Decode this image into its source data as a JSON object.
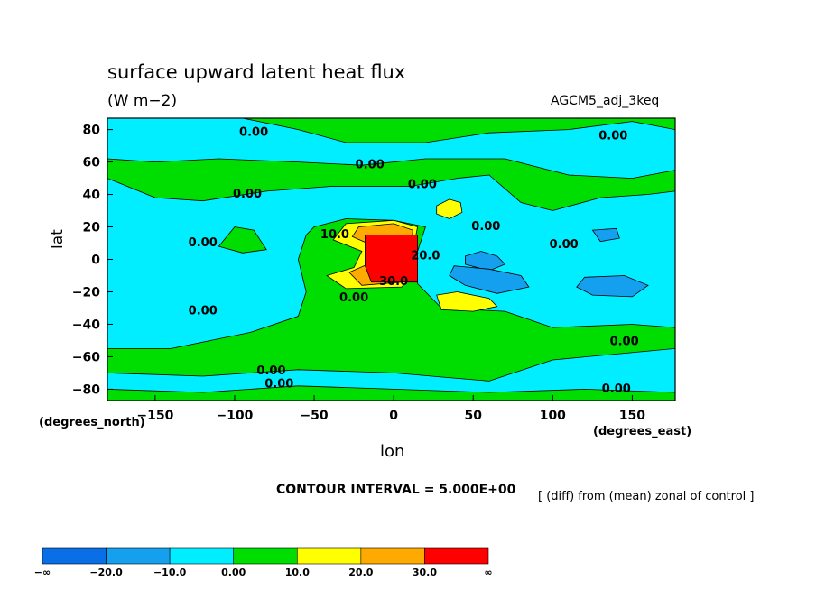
{
  "chart_data": {
    "type": "heatmap",
    "title": "surface upward latent heat flux",
    "subtitle": "(W m−2)",
    "run_label": "AGCM5_adj_3keq",
    "xlabel": "lon",
    "ylabel": "lat",
    "x_units_label": "(degrees_east)",
    "y_units_label": "(degrees_north)",
    "xlim": [
      -180,
      177
    ],
    "ylim": [
      -87,
      87
    ],
    "x_ticks": [
      -150,
      -100,
      -50,
      0,
      50,
      100,
      150
    ],
    "x_tick_labels": [
      "−150",
      "−100",
      "−50",
      "0",
      "50",
      "100",
      "150"
    ],
    "y_ticks": [
      80,
      60,
      40,
      20,
      0,
      -20,
      -40,
      -60,
      -80
    ],
    "y_tick_labels": [
      "80",
      "60",
      "40",
      "20",
      "0",
      "−20",
      "−40",
      "−60",
      "−80"
    ],
    "contour_interval_label": "CONTOUR INTERVAL = 5.000E+00",
    "operation_note": "[ (diff) from (mean) zonal of control ]",
    "colorbar": {
      "levels": [
        "−∞",
        "−20.0",
        "−10.0",
        "0.00",
        "10.0",
        "20.0",
        "30.0",
        "∞"
      ],
      "colors": [
        "#0a6ee6",
        "#14a0ee",
        "#00eeff",
        "#00dd00",
        "#ffff00",
        "#ffaa00",
        "#ff0000"
      ]
    },
    "background_color": "#00eeff",
    "regions": [
      {
        "value_class": "0 to 10",
        "color": "#00dd00",
        "polygon": [
          [
            -50,
            20
          ],
          [
            -30,
            25
          ],
          [
            0,
            24
          ],
          [
            20,
            20
          ],
          [
            15,
            5
          ],
          [
            15,
            -15
          ],
          [
            30,
            -30
          ],
          [
            70,
            -32
          ],
          [
            100,
            -42
          ],
          [
            150,
            -40
          ],
          [
            177,
            -42
          ],
          [
            177,
            -55
          ],
          [
            100,
            -62
          ],
          [
            60,
            -75
          ],
          [
            0,
            -70
          ],
          [
            -60,
            -68
          ],
          [
            -120,
            -72
          ],
          [
            -180,
            -70
          ],
          [
            -180,
            -55
          ],
          [
            -140,
            -55
          ],
          [
            -90,
            -45
          ],
          [
            -60,
            -35
          ],
          [
            -55,
            -20
          ],
          [
            -60,
            0
          ],
          [
            -55,
            15
          ]
        ]
      },
      {
        "value_class": "0 to 10",
        "color": "#00dd00",
        "polygon": [
          [
            -180,
            50
          ],
          [
            -150,
            38
          ],
          [
            -120,
            36
          ],
          [
            -80,
            42
          ],
          [
            -40,
            45
          ],
          [
            10,
            45
          ],
          [
            40,
            50
          ],
          [
            60,
            52
          ],
          [
            80,
            35
          ],
          [
            100,
            30
          ],
          [
            130,
            38
          ],
          [
            160,
            40
          ],
          [
            177,
            42
          ],
          [
            177,
            55
          ],
          [
            150,
            50
          ],
          [
            110,
            52
          ],
          [
            70,
            62
          ],
          [
            20,
            62
          ],
          [
            -20,
            58
          ],
          [
            -60,
            60
          ],
          [
            -110,
            62
          ],
          [
            -150,
            60
          ],
          [
            -180,
            62
          ]
        ]
      },
      {
        "value_class": "0 to 10",
        "color": "#00dd00",
        "polygon": [
          [
            -180,
            88
          ],
          [
            -100,
            88
          ],
          [
            -60,
            80
          ],
          [
            -30,
            72
          ],
          [
            20,
            72
          ],
          [
            60,
            78
          ],
          [
            110,
            80
          ],
          [
            150,
            85
          ],
          [
            177,
            80
          ],
          [
            177,
            88
          ]
        ]
      },
      {
        "value_class": "0 to 10",
        "color": "#00dd00",
        "polygon": [
          [
            -180,
            -80
          ],
          [
            -120,
            -82
          ],
          [
            -60,
            -78
          ],
          [
            0,
            -80
          ],
          [
            60,
            -82
          ],
          [
            120,
            -80
          ],
          [
            177,
            -82
          ],
          [
            177,
            -88
          ],
          [
            -180,
            -88
          ]
        ]
      },
      {
        "value_class": "0 to 10",
        "color": "#00dd00",
        "polygon": [
          [
            -110,
            8
          ],
          [
            -95,
            4
          ],
          [
            -80,
            6
          ],
          [
            -88,
            18
          ],
          [
            -100,
            20
          ]
        ]
      },
      {
        "value_class": "10 to 20",
        "color": "#ffff00",
        "polygon": [
          [
            -30,
            22
          ],
          [
            0,
            24
          ],
          [
            15,
            20
          ],
          [
            12,
            5
          ],
          [
            10,
            -12
          ],
          [
            5,
            -17
          ],
          [
            -30,
            -18
          ],
          [
            -42,
            -10
          ],
          [
            -25,
            -5
          ],
          [
            -20,
            5
          ],
          [
            -38,
            12
          ]
        ]
      },
      {
        "value_class": "10 to 20",
        "color": "#ffff00",
        "polygon": [
          [
            27,
            33
          ],
          [
            35,
            37
          ],
          [
            42,
            35
          ],
          [
            43,
            29
          ],
          [
            35,
            25
          ],
          [
            27,
            28
          ]
        ]
      },
      {
        "value_class": "10 to 20",
        "color": "#ffff00",
        "polygon": [
          [
            27,
            -22
          ],
          [
            40,
            -20
          ],
          [
            60,
            -24
          ],
          [
            65,
            -29
          ],
          [
            50,
            -32
          ],
          [
            30,
            -31
          ]
        ]
      },
      {
        "value_class": "20 to 30",
        "color": "#ffaa00",
        "polygon": [
          [
            -22,
            20
          ],
          [
            0,
            22
          ],
          [
            12,
            18
          ],
          [
            10,
            -5
          ],
          [
            5,
            -14
          ],
          [
            -20,
            -16
          ],
          [
            -28,
            -8
          ],
          [
            -14,
            -2
          ],
          [
            -12,
            8
          ],
          [
            -26,
            14
          ]
        ]
      },
      {
        "value_class": "above 30",
        "color": "#ff0000",
        "polygon": [
          [
            -18,
            15
          ],
          [
            15,
            15
          ],
          [
            15,
            -14
          ],
          [
            -14,
            -14
          ],
          [
            -18,
            -4
          ]
        ]
      },
      {
        "value_class": "-10 to -20",
        "color": "#14a0ee",
        "polygon": [
          [
            45,
            2
          ],
          [
            55,
            5
          ],
          [
            65,
            2
          ],
          [
            70,
            -3
          ],
          [
            60,
            -7
          ],
          [
            45,
            -3
          ]
        ]
      },
      {
        "value_class": "-10 to -20",
        "color": "#14a0ee",
        "polygon": [
          [
            38,
            -4
          ],
          [
            60,
            -6
          ],
          [
            80,
            -10
          ],
          [
            85,
            -17
          ],
          [
            65,
            -21
          ],
          [
            45,
            -16
          ],
          [
            35,
            -10
          ]
        ]
      },
      {
        "value_class": "-10 to -20",
        "color": "#14a0ee",
        "polygon": [
          [
            120,
            -11
          ],
          [
            145,
            -10
          ],
          [
            160,
            -16
          ],
          [
            150,
            -23
          ],
          [
            125,
            -22
          ],
          [
            115,
            -17
          ]
        ]
      },
      {
        "value_class": "-10 to -20",
        "color": "#14a0ee",
        "polygon": [
          [
            125,
            18
          ],
          [
            140,
            19
          ],
          [
            142,
            13
          ],
          [
            130,
            11
          ]
        ]
      }
    ],
    "contour_labels": [
      {
        "text": "0.00",
        "lon": -88,
        "lat": 78
      },
      {
        "text": "0.00",
        "lon": 138,
        "lat": 76
      },
      {
        "text": "0.00",
        "lon": -15,
        "lat": 58
      },
      {
        "text": "0.00",
        "lon": 18,
        "lat": 46
      },
      {
        "text": "0.00",
        "lon": -92,
        "lat": 40
      },
      {
        "text": "0.00",
        "lon": 58,
        "lat": 20
      },
      {
        "text": "0.00",
        "lon": -120,
        "lat": 10
      },
      {
        "text": "10.0",
        "lon": -37,
        "lat": 15
      },
      {
        "text": "0.00",
        "lon": 107,
        "lat": 9
      },
      {
        "text": "30.0",
        "lon": 0,
        "lat": -14
      },
      {
        "text": "20.0",
        "lon": 20,
        "lat": 2
      },
      {
        "text": "0.00",
        "lon": -25,
        "lat": -24
      },
      {
        "text": "0.00",
        "lon": -120,
        "lat": -32
      },
      {
        "text": "0.00",
        "lon": 145,
        "lat": -51
      },
      {
        "text": "0.00",
        "lon": -77,
        "lat": -69
      },
      {
        "text": "0.00",
        "lon": -72,
        "lat": -77
      },
      {
        "text": "0.00",
        "lon": 140,
        "lat": -80
      }
    ]
  }
}
